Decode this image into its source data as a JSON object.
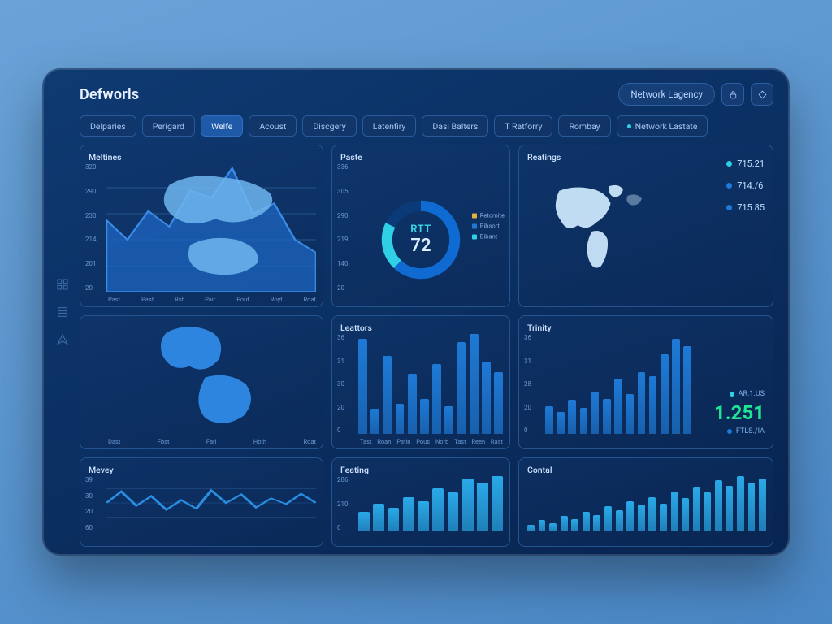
{
  "brand": "Defworls",
  "header": {
    "pill_label": "Network Lagency",
    "icon_buttons": [
      "lock-icon",
      "diamond-icon"
    ]
  },
  "tabs": [
    {
      "label": "Delparies"
    },
    {
      "label": "Perigard"
    },
    {
      "label": "Welfe",
      "active": true
    },
    {
      "label": "Acoust"
    },
    {
      "label": "Discgery"
    },
    {
      "label": "Latenfiry"
    },
    {
      "label": "Dasl Balters"
    },
    {
      "label": "T Ratforry"
    },
    {
      "label": "Rombay"
    },
    {
      "label": "Network Lastate",
      "dot": "#2fd0e6"
    }
  ],
  "side_icons": [
    "grid-icon",
    "layers-icon",
    "send-icon"
  ],
  "colors": {
    "panel_border": "#23548f",
    "grid": "#1d4a82",
    "area_fill": "#1d66c0",
    "area_stroke": "#3a8ae6",
    "bar_a": "#1e7ad6",
    "bar_b": "#2aa9e8",
    "accent_cyan": "#2fd0e6",
    "accent_green": "#20e694",
    "accent_amber": "#e8b23a",
    "map_fill": "#cfeaff",
    "text_muted": "#6a97d2"
  },
  "panels": {
    "meltins": {
      "title": "Meltines",
      "type": "area+map-overlay",
      "y_ticks": [
        "320",
        "290",
        "230",
        "214",
        "201",
        "20"
      ],
      "x_ticks": [
        "Past",
        "Past",
        "Rst",
        "Pair",
        "Pout",
        "Royt",
        "Roat"
      ],
      "series": [
        0.55,
        0.4,
        0.62,
        0.5,
        0.78,
        0.72,
        0.95,
        0.6,
        0.68,
        0.4,
        0.3
      ],
      "area_color": "#1d66c0",
      "stroke_color": "#3a8ae6",
      "map_color": "#6fb6f0"
    },
    "paste": {
      "title": "Paste",
      "type": "donut",
      "center_label": "RTT",
      "center_value": "72",
      "y_ticks": [
        "336",
        "305",
        "290",
        "219",
        "140",
        "20"
      ],
      "segments": [
        {
          "value": 62,
          "color": "#0f6bd1"
        },
        {
          "value": 20,
          "color": "#2fd0e6"
        },
        {
          "value": 18,
          "color": "#0a3a78"
        }
      ],
      "legend": [
        {
          "label": "Retornite",
          "color": "#e8b23a"
        },
        {
          "label": "Bibsort",
          "color": "#1e7ad6"
        },
        {
          "label": "Bibant",
          "color": "#2fd0e6"
        }
      ]
    },
    "reatings": {
      "title": "Reatings",
      "type": "world-map+stats",
      "map_color": "#cfeaff",
      "stats_top": [
        {
          "bullet": "#2fd0e6",
          "value": "715.21"
        },
        {
          "bullet": "#1e7ad6",
          "value": "714./6"
        },
        {
          "bullet": "#1e7ad6",
          "value": "715.85"
        }
      ]
    },
    "leftmap": {
      "title": "",
      "type": "map-fragment",
      "map_color": "#2e85e0",
      "x_ticks": [
        "Dast",
        "Fbst",
        "Farl",
        "Hoth",
        "Roat"
      ]
    },
    "leattors": {
      "title": "Leattors",
      "type": "bar",
      "y_ticks": [
        "36",
        "31",
        "30",
        "20",
        "0"
      ],
      "x_ticks": [
        "Tast",
        "Roan",
        "Patin",
        "Pous",
        "Norb",
        "Tast",
        "Reen",
        "Rast"
      ],
      "values": [
        0.95,
        0.25,
        0.78,
        0.3,
        0.6,
        0.35,
        0.7,
        0.28,
        0.92,
        1.0,
        0.72,
        0.62
      ],
      "bar_color": "#1e7ad6"
    },
    "trinity": {
      "title": "Trinity",
      "type": "bar",
      "y_ticks": [
        "36",
        "31",
        "28",
        "20",
        "0"
      ],
      "values": [
        0.28,
        0.22,
        0.34,
        0.26,
        0.42,
        0.35,
        0.55,
        0.4,
        0.62,
        0.58,
        0.8,
        0.95,
        0.88
      ],
      "bar_color": "#1e7ad6",
      "big_stat": {
        "label_top": "AR.1.US",
        "value": "1.251",
        "value_color": "#20e694",
        "label_bottom": "FTLS./IA"
      }
    },
    "mevey": {
      "title": "Mevey",
      "type": "line",
      "y_ticks": [
        "39",
        "30",
        "20",
        "60"
      ],
      "series": [
        0.5,
        0.7,
        0.45,
        0.62,
        0.38,
        0.55,
        0.4,
        0.72,
        0.5,
        0.65,
        0.42,
        0.58,
        0.48,
        0.66,
        0.5
      ],
      "stroke_color": "#2a8de0"
    },
    "feating": {
      "title": "Feating",
      "type": "bar",
      "y_ticks": [
        "286",
        "210",
        "0"
      ],
      "values": [
        0.35,
        0.5,
        0.42,
        0.62,
        0.55,
        0.78,
        0.7,
        0.95,
        0.88,
        1.0
      ],
      "bar_color": "#2aa9e8"
    },
    "contal": {
      "title": "Contal",
      "type": "bar",
      "values": [
        0.12,
        0.2,
        0.15,
        0.28,
        0.22,
        0.35,
        0.3,
        0.45,
        0.38,
        0.55,
        0.48,
        0.62,
        0.5,
        0.72,
        0.6,
        0.8,
        0.7,
        0.92,
        0.82,
        1.0,
        0.88,
        0.95
      ],
      "bar_color": "#2aa9e8"
    }
  }
}
